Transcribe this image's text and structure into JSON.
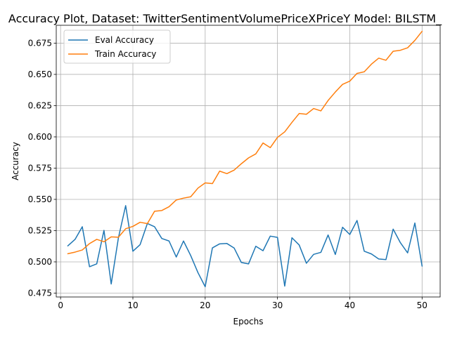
{
  "chart_data": {
    "type": "line",
    "title": "Accuracy Plot, Dataset: TwitterSentimentVolumePriceXPriceY Model: BILSTM_",
    "xlabel": "Epochs",
    "ylabel": "Accuracy",
    "xlim": [
      -0.6,
      52.5
    ],
    "ylim": [
      0.4719,
      0.6893
    ],
    "x_ticks": [
      0,
      10,
      20,
      30,
      40,
      50
    ],
    "y_ticks": [
      0.475,
      0.5,
      0.525,
      0.55,
      0.575,
      0.6,
      0.625,
      0.65,
      0.675
    ],
    "y_tick_labels": [
      "0.475",
      "0.500",
      "0.525",
      "0.550",
      "0.575",
      "0.600",
      "0.625",
      "0.650",
      "0.675"
    ],
    "grid": true,
    "legend_position": "top-left",
    "x": [
      1,
      2,
      3,
      4,
      5,
      6,
      7,
      8,
      9,
      10,
      11,
      12,
      13,
      14,
      15,
      16,
      17,
      18,
      19,
      20,
      21,
      22,
      23,
      24,
      25,
      26,
      27,
      28,
      29,
      30,
      31,
      32,
      33,
      34,
      35,
      36,
      37,
      38,
      39,
      40,
      41,
      42,
      43,
      44,
      45,
      46,
      47,
      48,
      49,
      50
    ],
    "series": [
      {
        "name": "Eval Accuracy",
        "color": "#1f77b4",
        "values": [
          0.5128,
          0.518,
          0.5281,
          0.4961,
          0.4984,
          0.5252,
          0.4823,
          0.5193,
          0.545,
          0.5085,
          0.5138,
          0.5307,
          0.5281,
          0.5187,
          0.5167,
          0.5039,
          0.5167,
          0.505,
          0.4914,
          0.4801,
          0.5112,
          0.5144,
          0.5147,
          0.5111,
          0.4995,
          0.4984,
          0.5125,
          0.5089,
          0.5206,
          0.5196,
          0.4806,
          0.5193,
          0.5135,
          0.4989,
          0.506,
          0.5076,
          0.5215,
          0.5059,
          0.5277,
          0.5219,
          0.5331,
          0.5085,
          0.5063,
          0.5023,
          0.5018,
          0.5262,
          0.5153,
          0.5072,
          0.5311,
          0.4966
        ]
      },
      {
        "name": "Train Accuracy",
        "color": "#ff7f0e",
        "values": [
          0.5065,
          0.5078,
          0.5095,
          0.5146,
          0.518,
          0.5161,
          0.52,
          0.5197,
          0.5265,
          0.5284,
          0.5317,
          0.5306,
          0.5405,
          0.5411,
          0.5441,
          0.5495,
          0.551,
          0.5521,
          0.559,
          0.5632,
          0.5626,
          0.5726,
          0.5706,
          0.5734,
          0.5785,
          0.5832,
          0.5864,
          0.5951,
          0.5914,
          0.5996,
          0.604,
          0.6116,
          0.6187,
          0.6181,
          0.6227,
          0.6208,
          0.6291,
          0.6359,
          0.642,
          0.6446,
          0.6508,
          0.6521,
          0.6582,
          0.663,
          0.6613,
          0.6685,
          0.6693,
          0.6713,
          0.6772,
          0.6845
        ]
      }
    ]
  }
}
